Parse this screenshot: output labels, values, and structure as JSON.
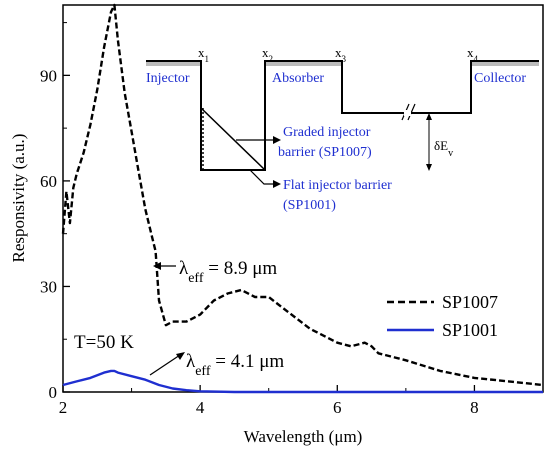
{
  "chart_data": {
    "type": "line",
    "xlabel": "Wavelength (μm)",
    "ylabel": "Responsivity (a.u.)",
    "xlim": [
      2,
      9
    ],
    "ylim": [
      0,
      110
    ],
    "x_ticks": [
      "2",
      "4",
      "6",
      "8"
    ],
    "y_ticks": [
      "0",
      "30",
      "60",
      "90"
    ],
    "legend_position": "lower-right",
    "series": [
      {
        "name": "SP1007",
        "color": "#000000",
        "style": "dashed",
        "x": [
          2.0,
          2.05,
          2.1,
          2.15,
          2.2,
          2.3,
          2.4,
          2.5,
          2.6,
          2.7,
          2.75,
          2.8,
          2.9,
          3.0,
          3.1,
          3.2,
          3.3,
          3.35,
          3.4,
          3.5,
          3.6,
          3.8,
          4.0,
          4.2,
          4.4,
          4.6,
          4.8,
          5.0,
          5.2,
          5.4,
          5.6,
          5.8,
          6.0,
          6.2,
          6.4,
          6.5,
          6.6,
          6.8,
          7.0,
          7.5,
          8.0,
          8.5,
          9.0
        ],
        "y": [
          45,
          57,
          48,
          58,
          62,
          68,
          76,
          86,
          98,
          108,
          110,
          100,
          85,
          74,
          63,
          52,
          44,
          40,
          26,
          19,
          20,
          20,
          22,
          26,
          28,
          29,
          27,
          27,
          24,
          21,
          18,
          16,
          14,
          13,
          14,
          13,
          11,
          10,
          9,
          6,
          4,
          3,
          2
        ]
      },
      {
        "name": "SP1001",
        "color": "#1f2fd0",
        "style": "solid",
        "x": [
          2.0,
          2.2,
          2.4,
          2.6,
          2.7,
          2.75,
          2.8,
          3.0,
          3.2,
          3.4,
          3.6,
          3.8,
          4.0,
          4.2,
          4.5,
          5.0,
          9.0
        ],
        "y": [
          2.0,
          3.0,
          4.0,
          5.5,
          6.0,
          6.0,
          5.5,
          4.5,
          3.5,
          2.0,
          1.0,
          0.5,
          0.2,
          0.1,
          0.0,
          0.0,
          0.0
        ]
      }
    ],
    "annotations": {
      "lambda_sp1007_symbol": "λ",
      "lambda_sp1007_sub": "eff",
      "lambda_sp1007_value": " = 8.9 μm",
      "lambda_sp1001_symbol": "λ",
      "lambda_sp1001_sub": "eff",
      "lambda_sp1001_value": " = 4.1 μm",
      "temperature": "T=50 K"
    },
    "inset": {
      "x_labels": [
        "x",
        "x",
        "x",
        "x"
      ],
      "x_subs": [
        "1",
        "2",
        "3",
        "4"
      ],
      "regions": [
        "Injector",
        "Absorber",
        "Collector"
      ],
      "graded_label": [
        "Graded injector",
        "barrier (SP1007)"
      ],
      "flat_label": [
        "Flat injector barrier",
        "(SP1001)"
      ],
      "delta_label": "δE",
      "delta_sub": "v"
    }
  }
}
